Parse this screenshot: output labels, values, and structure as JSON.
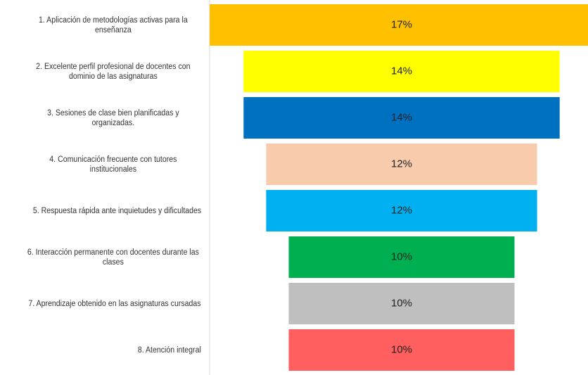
{
  "chart_data": {
    "type": "funnel",
    "categories": [
      "1. Aplicación de metodologías activas para la enseñanza",
      "2. Excelente perfil profesional de docentes con dominio de las asignaturas",
      "3. Sesiones de clase bien planificadas y organizadas.",
      "4. Comunicación frecuente con tutores institucionales",
      "5. Respuesta rápida ante inquietudes y dificultades",
      "6. Interacción permanente con docentes durante las clases",
      "7. Aprendizaje obtenido en las asignaturas cursadas",
      "8. Atención integral"
    ],
    "values": [
      17,
      14,
      14,
      12,
      12,
      10,
      10,
      10
    ],
    "value_labels": [
      "17%",
      "14%",
      "14%",
      "12%",
      "12%",
      "10%",
      "10%",
      "10%"
    ],
    "colors": [
      "#FFC000",
      "#FFFF00",
      "#0070C0",
      "#F8CBAD",
      "#00B0F0",
      "#00B050",
      "#BFBFBF",
      "#FF5F5F"
    ]
  }
}
